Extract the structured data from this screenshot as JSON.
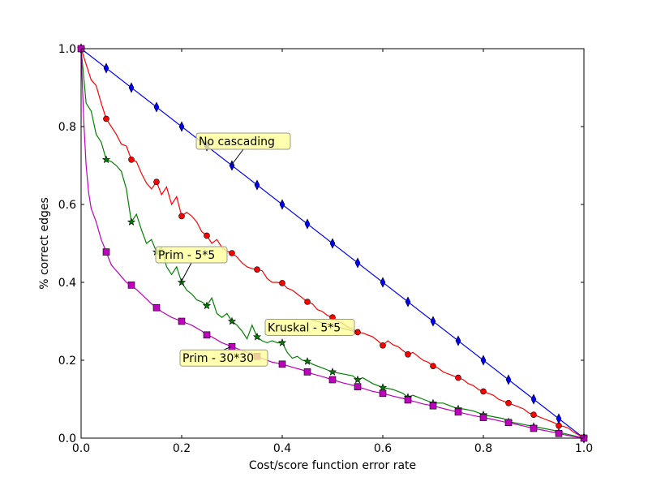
{
  "chart_data": {
    "type": "line",
    "title": "",
    "xlabel": "Cost/score function error rate",
    "ylabel": "% correct edges",
    "xlim": [
      0.0,
      1.0
    ],
    "ylim": [
      0.0,
      1.0
    ],
    "xticks": [
      "0.0",
      "0.2",
      "0.4",
      "0.6",
      "0.8",
      "1.0"
    ],
    "yticks": [
      "0.0",
      "0.2",
      "0.4",
      "0.6",
      "0.8",
      "1.0"
    ],
    "grid": false,
    "legend": "none",
    "series": [
      {
        "name": "No cascading",
        "color": "#0000ff",
        "marker": "thin-diamond",
        "x": [
          0.0,
          0.05,
          0.1,
          0.15,
          0.2,
          0.25,
          0.3,
          0.35,
          0.4,
          0.45,
          0.5,
          0.55,
          0.6,
          0.65,
          0.7,
          0.75,
          0.8,
          0.85,
          0.9,
          0.95,
          1.0
        ],
        "y": [
          1.0,
          0.95,
          0.9,
          0.85,
          0.8,
          0.75,
          0.7,
          0.65,
          0.6,
          0.55,
          0.5,
          0.45,
          0.4,
          0.35,
          0.3,
          0.25,
          0.2,
          0.15,
          0.1,
          0.05,
          0.0
        ],
        "line_x": [
          0.0,
          1.0
        ],
        "line_y": [
          1.0,
          0.0
        ]
      },
      {
        "name": "Kruskal - 5*5",
        "color": "#ff0000",
        "marker": "circle",
        "x": [
          0.0,
          0.05,
          0.1,
          0.15,
          0.2,
          0.25,
          0.3,
          0.35,
          0.4,
          0.45,
          0.5,
          0.55,
          0.6,
          0.65,
          0.7,
          0.75,
          0.8,
          0.85,
          0.9,
          0.95,
          1.0
        ],
        "y": [
          1.0,
          0.82,
          0.715,
          0.658,
          0.57,
          0.52,
          0.475,
          0.433,
          0.398,
          0.35,
          0.31,
          0.272,
          0.238,
          0.215,
          0.185,
          0.155,
          0.12,
          0.09,
          0.06,
          0.032,
          0.0
        ],
        "line_x": [
          0.0,
          0.01,
          0.02,
          0.03,
          0.04,
          0.05,
          0.06,
          0.07,
          0.08,
          0.09,
          0.1,
          0.11,
          0.12,
          0.13,
          0.14,
          0.15,
          0.16,
          0.17,
          0.18,
          0.19,
          0.2,
          0.21,
          0.22,
          0.23,
          0.24,
          0.25,
          0.26,
          0.27,
          0.28,
          0.29,
          0.3,
          0.31,
          0.32,
          0.33,
          0.34,
          0.35,
          0.36,
          0.37,
          0.38,
          0.39,
          0.4,
          0.41,
          0.42,
          0.43,
          0.44,
          0.45,
          0.46,
          0.47,
          0.48,
          0.49,
          0.5,
          0.51,
          0.52,
          0.53,
          0.54,
          0.55,
          0.56,
          0.57,
          0.58,
          0.59,
          0.6,
          0.61,
          0.62,
          0.63,
          0.64,
          0.65,
          0.66,
          0.67,
          0.68,
          0.69,
          0.7,
          0.71,
          0.72,
          0.73,
          0.74,
          0.75,
          0.76,
          0.77,
          0.78,
          0.79,
          0.8,
          0.81,
          0.82,
          0.83,
          0.84,
          0.85,
          0.86,
          0.87,
          0.88,
          0.89,
          0.9,
          0.91,
          0.92,
          0.93,
          0.94,
          0.95,
          0.96,
          0.97,
          0.98,
          0.99,
          1.0
        ],
        "line_y": [
          1.0,
          0.96,
          0.92,
          0.905,
          0.86,
          0.82,
          0.8,
          0.78,
          0.755,
          0.75,
          0.715,
          0.71,
          0.68,
          0.655,
          0.64,
          0.658,
          0.625,
          0.645,
          0.6,
          0.62,
          0.57,
          0.58,
          0.57,
          0.555,
          0.53,
          0.52,
          0.5,
          0.51,
          0.49,
          0.48,
          0.475,
          0.465,
          0.45,
          0.44,
          0.435,
          0.433,
          0.43,
          0.41,
          0.4,
          0.4,
          0.398,
          0.385,
          0.38,
          0.37,
          0.36,
          0.35,
          0.345,
          0.33,
          0.325,
          0.315,
          0.31,
          0.3,
          0.295,
          0.285,
          0.28,
          0.272,
          0.27,
          0.265,
          0.26,
          0.25,
          0.238,
          0.25,
          0.24,
          0.235,
          0.225,
          0.215,
          0.22,
          0.21,
          0.2,
          0.195,
          0.185,
          0.18,
          0.17,
          0.165,
          0.16,
          0.155,
          0.15,
          0.14,
          0.135,
          0.125,
          0.12,
          0.115,
          0.11,
          0.1,
          0.095,
          0.09,
          0.085,
          0.08,
          0.075,
          0.065,
          0.06,
          0.055,
          0.05,
          0.045,
          0.04,
          0.032,
          0.03,
          0.025,
          0.015,
          0.008,
          0.0
        ]
      },
      {
        "name": "Prim - 5*5",
        "color": "#008000",
        "marker": "star",
        "x": [
          0.0,
          0.05,
          0.1,
          0.15,
          0.2,
          0.25,
          0.3,
          0.35,
          0.4,
          0.45,
          0.5,
          0.55,
          0.6,
          0.65,
          0.7,
          0.75,
          0.8,
          0.85,
          0.9,
          0.95,
          1.0
        ],
        "y": [
          1.0,
          0.715,
          0.555,
          0.478,
          0.4,
          0.34,
          0.3,
          0.26,
          0.245,
          0.197,
          0.17,
          0.15,
          0.13,
          0.105,
          0.09,
          0.075,
          0.06,
          0.042,
          0.03,
          0.015,
          0.0
        ],
        "line_x": [
          0.0,
          0.01,
          0.02,
          0.03,
          0.04,
          0.05,
          0.06,
          0.07,
          0.08,
          0.09,
          0.1,
          0.11,
          0.12,
          0.13,
          0.14,
          0.15,
          0.16,
          0.17,
          0.18,
          0.19,
          0.2,
          0.21,
          0.22,
          0.23,
          0.24,
          0.25,
          0.26,
          0.27,
          0.28,
          0.29,
          0.3,
          0.31,
          0.32,
          0.33,
          0.34,
          0.35,
          0.36,
          0.37,
          0.38,
          0.39,
          0.4,
          0.41,
          0.42,
          0.43,
          0.44,
          0.45,
          0.46,
          0.47,
          0.48,
          0.49,
          0.5,
          0.52,
          0.54,
          0.55,
          0.56,
          0.58,
          0.6,
          0.62,
          0.64,
          0.65,
          0.66,
          0.68,
          0.7,
          0.72,
          0.74,
          0.75,
          0.76,
          0.78,
          0.8,
          0.82,
          0.84,
          0.85,
          0.86,
          0.88,
          0.9,
          0.92,
          0.94,
          0.95,
          0.96,
          0.98,
          1.0
        ],
        "line_y": [
          1.0,
          0.86,
          0.84,
          0.78,
          0.76,
          0.715,
          0.71,
          0.7,
          0.685,
          0.64,
          0.555,
          0.575,
          0.535,
          0.5,
          0.51,
          0.478,
          0.49,
          0.44,
          0.42,
          0.44,
          0.4,
          0.38,
          0.37,
          0.355,
          0.35,
          0.34,
          0.36,
          0.32,
          0.31,
          0.32,
          0.3,
          0.29,
          0.275,
          0.255,
          0.29,
          0.26,
          0.25,
          0.245,
          0.25,
          0.245,
          0.245,
          0.22,
          0.205,
          0.21,
          0.2,
          0.197,
          0.19,
          0.185,
          0.18,
          0.175,
          0.17,
          0.165,
          0.16,
          0.15,
          0.155,
          0.14,
          0.13,
          0.125,
          0.115,
          0.105,
          0.11,
          0.1,
          0.09,
          0.09,
          0.08,
          0.075,
          0.075,
          0.07,
          0.06,
          0.055,
          0.05,
          0.042,
          0.04,
          0.035,
          0.03,
          0.025,
          0.02,
          0.015,
          0.012,
          0.006,
          0.0
        ]
      },
      {
        "name": "Prim - 30*30",
        "color": "#bf00bf",
        "marker": "square",
        "x": [
          0.0,
          0.05,
          0.1,
          0.15,
          0.2,
          0.25,
          0.3,
          0.35,
          0.4,
          0.45,
          0.5,
          0.55,
          0.6,
          0.65,
          0.7,
          0.75,
          0.8,
          0.85,
          0.9,
          0.95,
          1.0
        ],
        "y": [
          1.0,
          0.478,
          0.393,
          0.335,
          0.3,
          0.265,
          0.235,
          0.21,
          0.19,
          0.17,
          0.15,
          0.132,
          0.115,
          0.098,
          0.083,
          0.067,
          0.053,
          0.04,
          0.025,
          0.012,
          0.0
        ],
        "line_x": [
          0.0,
          0.005,
          0.01,
          0.015,
          0.02,
          0.03,
          0.04,
          0.05,
          0.06,
          0.07,
          0.08,
          0.09,
          0.1,
          0.12,
          0.14,
          0.15,
          0.16,
          0.18,
          0.2,
          0.22,
          0.24,
          0.25,
          0.26,
          0.28,
          0.3,
          0.32,
          0.34,
          0.35,
          0.36,
          0.38,
          0.4,
          0.42,
          0.44,
          0.45,
          0.46,
          0.48,
          0.5,
          0.52,
          0.54,
          0.55,
          0.56,
          0.58,
          0.6,
          0.62,
          0.64,
          0.65,
          0.66,
          0.68,
          0.7,
          0.72,
          0.74,
          0.75,
          0.76,
          0.78,
          0.8,
          0.82,
          0.84,
          0.85,
          0.86,
          0.88,
          0.9,
          0.92,
          0.94,
          0.95,
          0.96,
          0.98,
          1.0
        ],
        "line_y": [
          1.0,
          0.82,
          0.7,
          0.63,
          0.59,
          0.555,
          0.51,
          0.478,
          0.445,
          0.43,
          0.415,
          0.4,
          0.393,
          0.37,
          0.345,
          0.335,
          0.325,
          0.31,
          0.3,
          0.29,
          0.275,
          0.265,
          0.26,
          0.245,
          0.235,
          0.225,
          0.215,
          0.21,
          0.205,
          0.195,
          0.19,
          0.182,
          0.175,
          0.17,
          0.165,
          0.158,
          0.15,
          0.142,
          0.136,
          0.132,
          0.128,
          0.12,
          0.115,
          0.108,
          0.102,
          0.098,
          0.095,
          0.088,
          0.083,
          0.076,
          0.07,
          0.067,
          0.064,
          0.058,
          0.053,
          0.048,
          0.042,
          0.04,
          0.037,
          0.031,
          0.025,
          0.02,
          0.015,
          0.012,
          0.009,
          0.004,
          0.0
        ]
      }
    ],
    "annotations": [
      {
        "text": "No cascading",
        "series": "No cascading",
        "point": [
          0.3,
          0.7
        ]
      },
      {
        "text": "Kruskal - 5*5",
        "series": "Kruskal - 5*5",
        "point": [
          0.55,
          0.272
        ]
      },
      {
        "text": "Prim - 5*5",
        "series": "Prim - 5*5",
        "point": [
          0.2,
          0.4
        ]
      },
      {
        "text": "Prim - 30*30",
        "series": "Prim - 30*30",
        "point": [
          0.3,
          0.235
        ]
      }
    ]
  }
}
